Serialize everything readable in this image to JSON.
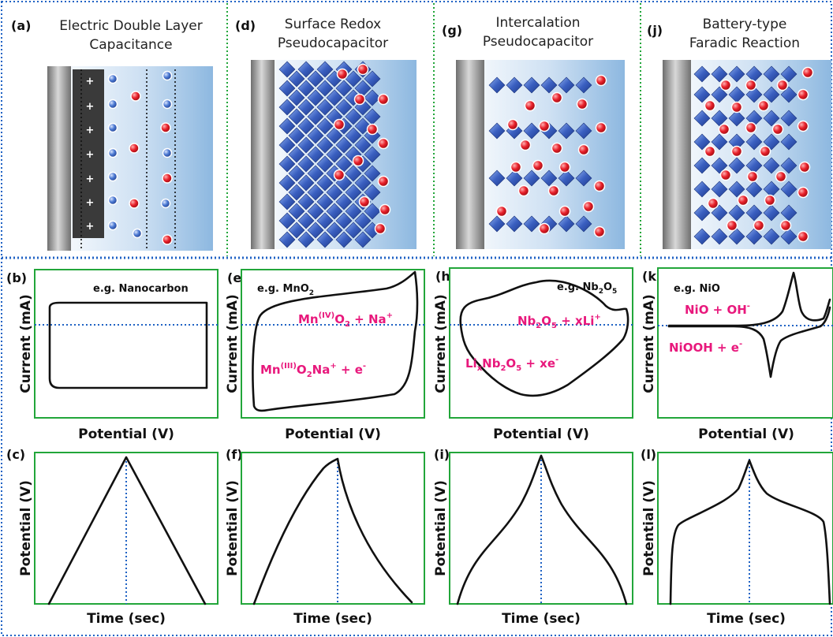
{
  "mechanisms": [
    {
      "id": "a",
      "label": "(a)",
      "title_line1": "Electric Double Layer",
      "title_line2": "Capacitance",
      "charge_symbol": "+"
    },
    {
      "id": "d",
      "label": "(d)",
      "title_line1": "Surface Redox",
      "title_line2": "Pseudocapacitor"
    },
    {
      "id": "g",
      "label": "(g)",
      "title_line1": "Intercalation",
      "title_line2": "Pseudocapacitor"
    },
    {
      "id": "j",
      "label": "(j)",
      "title_line1": "Battery-type",
      "title_line2": "Faradic Reaction"
    }
  ],
  "cv_panels": [
    {
      "label": "(b)",
      "example": "e.g. Nanocarbon",
      "ylabel": "Current (mA)",
      "xlabel": "Potential (V)"
    },
    {
      "label": "(e)",
      "example_prefix": "e.g. MnO",
      "example_sub": "2",
      "ylabel": "Current (mA)",
      "xlabel": "Potential (V)",
      "rx_top": {
        "a": "Mn",
        "a_sup": "(IV)",
        "b": "O",
        "b_sub": "2",
        "c": " + Na",
        "c_sup": "+"
      },
      "rx_bot": {
        "a": "Mn",
        "a_sup": "(III)",
        "b": "O",
        "b_sub": "2",
        "c": "Na",
        "c_sup": "+",
        "d": " + e",
        "d_sup": "-"
      }
    },
    {
      "label": "(h)",
      "example_prefix": "e.g. Nb",
      "example_sub1": "2",
      "example_mid": "O",
      "example_sub2": "5",
      "ylabel": "Current (mA)",
      "xlabel": "Potential (V)",
      "rx_top": {
        "a": "Nb",
        "a_sub": "2",
        "b": "O",
        "b_sub": "5",
        "c": " + xLi",
        "c_sup": "+"
      },
      "rx_bot": {
        "a": "Li",
        "a_sub": "x",
        "b": "Nb",
        "b_sub": "2",
        "c": "O",
        "c_sub": "5",
        "d": " + xe",
        "d_sup": "-"
      }
    },
    {
      "label": "(k)",
      "example": "e.g. NiO",
      "ylabel": "Current (mA)",
      "xlabel": "Potential (V)",
      "rx_top": {
        "a": "NiO + OH",
        "a_sup": "-"
      },
      "rx_bot": {
        "a": "NiOOH + e",
        "a_sup": "-"
      }
    }
  ],
  "gcd_panels": [
    {
      "label": "(c)",
      "ylabel": "Potential (V)",
      "xlabel": "Time (sec)"
    },
    {
      "label": "(f)",
      "ylabel": "Potential (V)",
      "xlabel": "Time (sec)"
    },
    {
      "label": "(i)",
      "ylabel": "Potential (V)",
      "xlabel": "Time (sec)"
    },
    {
      "label": "(l)",
      "ylabel": "Potential (V)",
      "xlabel": "Time (sec)"
    }
  ],
  "colors": {
    "cation": "#e8202a",
    "anion": "#3a66c4",
    "lattice": "#3458b8",
    "electrode": "#8c8c8c",
    "electrolyte": "#8cb8e0",
    "reaction_text": "#e8187c",
    "panel_border": "#22a63a",
    "divider": "#1f62c4"
  }
}
